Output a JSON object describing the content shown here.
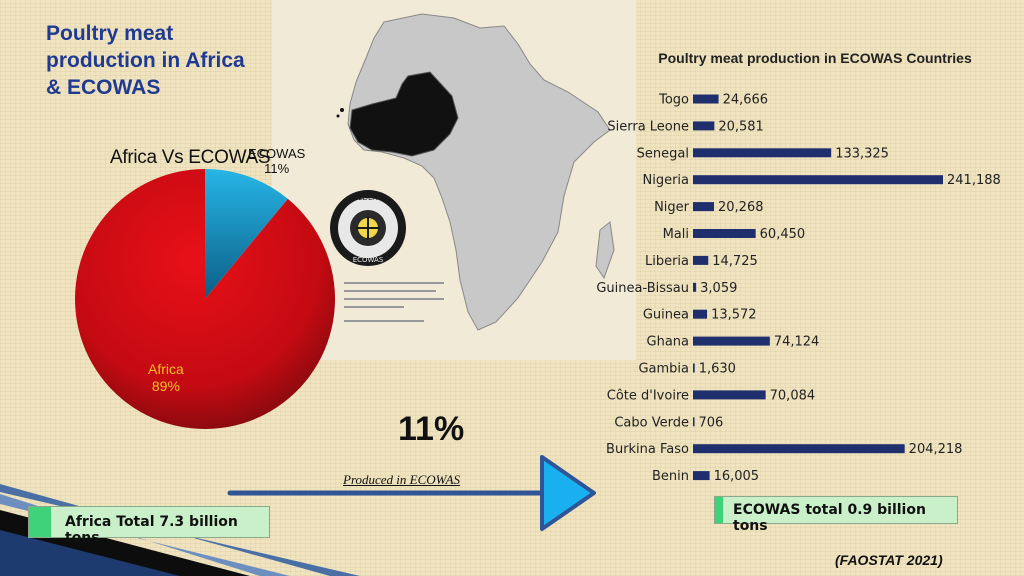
{
  "slide": {
    "title_line1": "Poultry meat",
    "title_line2": "production in Africa",
    "title_line3": "& ECOWAS",
    "big_percent": "11%",
    "produced_text": "Produced in ECOWAS",
    "africa_total": "Africa Total 7.3 billion tons",
    "ecowas_total": "ECOWAS total 0.9 billion tons",
    "source": "(FAOSTAT 2021)",
    "logo_text_top": "CEDEAO",
    "logo_text_bottom": "ECOWAS"
  },
  "colors": {
    "title": "#1f3a93",
    "bar": "#1f2f6e",
    "africa_slice": "#cc0c14",
    "ecowas_slice": "#1aa8d8",
    "arrow": "#2f5597",
    "arrow_head": "#1ab0f0",
    "total_box": "#c9f0c9"
  },
  "chart_data": [
    {
      "type": "pie",
      "title": "Africa Vs ECOWAS",
      "slices": [
        {
          "name": "ECOWAS",
          "pct_label": "11%",
          "value": 11
        },
        {
          "name": "Africa",
          "pct_label": "89%",
          "value": 89
        }
      ]
    },
    {
      "type": "bar",
      "orientation": "horizontal",
      "title": "Poultry meat production in ECOWAS Countries",
      "categories": [
        "Togo",
        "Sierra Leone",
        "Senegal",
        "Nigeria",
        "Niger",
        "Mali",
        "Liberia",
        "Guinea-Bissau",
        "Guinea",
        "Ghana",
        "Gambia",
        "Côte d'Ivoire",
        "Cabo Verde",
        "Burkina Faso",
        "Benin"
      ],
      "values": [
        24666,
        20581,
        133325,
        241188,
        20268,
        60450,
        14725,
        3059,
        13572,
        74124,
        1630,
        70084,
        706,
        204218,
        16005
      ],
      "value_labels": [
        "24,666",
        "20,581",
        "133,325",
        "241,188",
        "20,268",
        "60,450",
        "14,725",
        "3,059",
        "13,572",
        "74,124",
        "1,630",
        "70,084",
        "706",
        "204,218",
        "16,005"
      ],
      "xlim": [
        0,
        241188
      ],
      "grid": false
    }
  ]
}
